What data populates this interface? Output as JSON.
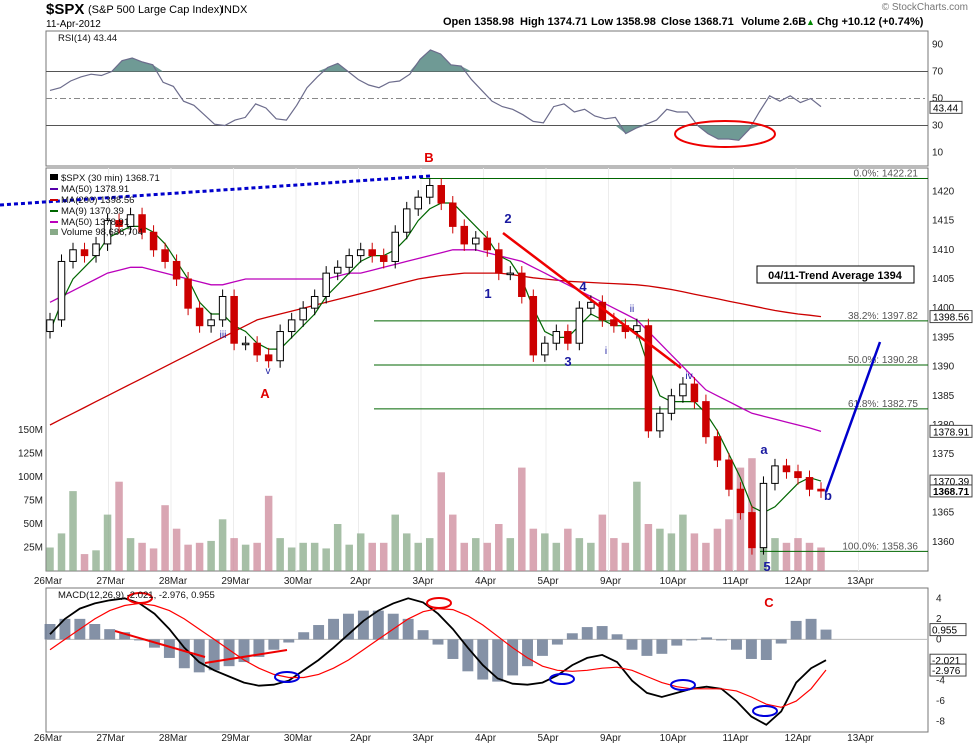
{
  "header": {
    "ticker": "$SPX",
    "name": "(S&P 500 Large Cap Index)",
    "exchange": "INDX",
    "date": "11-Apr-2012",
    "open": "Open 1358.98",
    "high": "High 1374.71",
    "low": "Low 1358.98",
    "close": "Close 1368.71",
    "volume": "Volume 2.6B",
    "change": "Chg +10.12 (+0.74%)",
    "change_arrow": "▲",
    "watermark": "© StockCharts.com"
  },
  "colors": {
    "candle_up": "#000000",
    "candle_down": "#cc0000",
    "ma50": "#5500aa",
    "ma200": "#cc0000",
    "ma9": "#006600",
    "ma50b": "#bb00bb",
    "volume_up": "#88aa88",
    "volume_down": "#cc8899",
    "rsi_fill": "#5f8f8a",
    "macd_line": "#000000",
    "macd_signal": "#ff0000",
    "histogram": "#6e7e96",
    "trendline_blue": "#0000cc",
    "fib_green": "#006600"
  },
  "chart_data": [
    {
      "panel": "RSI",
      "type": "line",
      "title": "RSI(14) 43.44",
      "ylim": [
        0,
        100
      ],
      "yticks": [
        10,
        30,
        50,
        70,
        90
      ],
      "ytick_labels": [
        "10",
        "30",
        "50",
        "70",
        "90"
      ],
      "levels": [
        30,
        70
      ],
      "current_label": "43.44",
      "current": 43.44,
      "x": [
        0,
        2,
        4,
        6,
        8,
        10,
        12,
        14,
        16,
        18,
        20,
        22,
        24,
        26,
        28,
        30,
        32,
        34,
        36,
        38,
        40,
        42,
        44,
        46,
        48,
        50,
        52,
        54,
        56,
        58,
        60,
        62,
        64,
        66,
        68,
        70,
        72,
        74,
        76,
        78,
        80,
        82,
        84,
        86,
        88,
        90,
        92,
        94,
        96,
        98,
        100,
        102,
        104,
        106,
        108,
        110,
        112,
        114,
        116,
        118,
        120,
        122,
        124,
        126,
        128,
        130,
        132,
        134,
        136,
        138,
        140,
        142,
        144,
        146,
        148,
        150
      ],
      "values": [
        56,
        58,
        63,
        66,
        68,
        67,
        70,
        78,
        80,
        77,
        75,
        62,
        59,
        48,
        45,
        38,
        31,
        30,
        34,
        36,
        46,
        43,
        35,
        34,
        45,
        58,
        66,
        73,
        76,
        70,
        64,
        60,
        58,
        62,
        63,
        68,
        79,
        86,
        83,
        75,
        74,
        64,
        56,
        48,
        44,
        42,
        38,
        33,
        32,
        44,
        46,
        40,
        42,
        37,
        35,
        36,
        24,
        28,
        31,
        34,
        42,
        40,
        40,
        30,
        24,
        20,
        20,
        19,
        27,
        40,
        52,
        48,
        52,
        47,
        50,
        44
      ]
    },
    {
      "panel": "Price",
      "type": "candlestick",
      "title": "$SPX (30 min) 1368.71",
      "interval": "30 min",
      "ylim": [
        1355,
        1424
      ],
      "yticks": [
        1360,
        1365,
        1370,
        1375,
        1380,
        1385,
        1390,
        1395,
        1400,
        1405,
        1410,
        1415,
        1420
      ],
      "ytick_labels": [
        "1360",
        "1365",
        "1370",
        "1375",
        "1380",
        "1385",
        "1390",
        "1395",
        "1400",
        "1405",
        "1410",
        "1415",
        "1420"
      ],
      "categories": [
        "26Mar",
        "27Mar",
        "28Mar",
        "29Mar",
        "30Mar",
        "2Apr",
        "3Apr",
        "4Apr",
        "5Apr",
        "9Apr",
        "10Apr",
        "11Apr",
        "12Apr",
        "13Apr"
      ],
      "legend": [
        "$SPX (30 min) 1368.71",
        "MA(50) 1378.91",
        "MA(200) 1398.56",
        "MA(9) 1370.39",
        "MA(50) 1378.91",
        "Volume 98,686,704"
      ],
      "price_badges": [
        {
          "label": "1398.56",
          "value": 1398.56
        },
        {
          "label": "1378.91",
          "value": 1378.91
        },
        {
          "label": "1370.39",
          "value": 1370.39
        },
        {
          "label": "1368.71",
          "value": 1368.71
        }
      ],
      "close": [
        1398,
        1408,
        1410,
        1409,
        1411,
        1415,
        1414,
        1416,
        1413,
        1410,
        1408,
        1405,
        1400,
        1397,
        1398,
        1402,
        1394,
        1394,
        1392,
        1391,
        1396,
        1398,
        1400,
        1402,
        1406,
        1407,
        1409,
        1410,
        1409,
        1408,
        1413,
        1417,
        1419,
        1421,
        1418,
        1414,
        1411,
        1412,
        1410,
        1406,
        1406,
        1402,
        1392,
        1394,
        1396,
        1394,
        1400,
        1401,
        1398,
        1397,
        1396,
        1397,
        1379,
        1382,
        1385,
        1387,
        1384,
        1378,
        1374,
        1369,
        1365,
        1359,
        1370,
        1373,
        1372,
        1371,
        1369,
        1368.71
      ],
      "ma": {
        "MA(9)": [
          1396,
          1401,
          1405,
          1407,
          1409,
          1412,
          1413,
          1414,
          1414,
          1413,
          1411,
          1408,
          1405,
          1401,
          1399,
          1399,
          1397,
          1396,
          1394,
          1393,
          1393,
          1395,
          1397,
          1399,
          1402,
          1404,
          1406,
          1408,
          1409,
          1409,
          1410,
          1412,
          1415,
          1417,
          1418,
          1418,
          1416,
          1414,
          1412,
          1409,
          1408,
          1405,
          1400,
          1396,
          1395,
          1395,
          1397,
          1399,
          1398,
          1397,
          1397,
          1396,
          1390,
          1385,
          1384,
          1384,
          1384,
          1382,
          1379,
          1375,
          1371,
          1366,
          1365,
          1366,
          1368,
          1370,
          1371,
          1370.39
        ],
        "MA(200)": [
          1380,
          1381,
          1382,
          1383,
          1384,
          1385,
          1386,
          1387,
          1388,
          1389,
          1390,
          1391,
          1392,
          1393,
          1394,
          1395,
          1396,
          1397,
          1398,
          1398.5,
          1399,
          1399.5,
          1400,
          1400.5,
          1401,
          1401.5,
          1402,
          1402.5,
          1403,
          1403.5,
          1404,
          1404.5,
          1405,
          1405.3,
          1405.6,
          1405.8,
          1406,
          1406,
          1406,
          1406,
          1405.8,
          1405.5,
          1405.2,
          1405,
          1404.8,
          1404.6,
          1404.5,
          1404.4,
          1404.3,
          1404.2,
          1404.1,
          1404,
          1403.8,
          1403.5,
          1403.2,
          1402.8,
          1402.4,
          1402,
          1401.6,
          1401.2,
          1400.8,
          1400.4,
          1400,
          1399.6,
          1399.3,
          1399,
          1398.8,
          1398.56
        ],
        "MA(50)": [
          1401,
          1402,
          1403,
          1404,
          1405,
          1406,
          1406.5,
          1407,
          1407,
          1406.5,
          1406,
          1405.5,
          1405,
          1404.5,
          1404,
          1404,
          1404.5,
          1405,
          1405,
          1405,
          1405,
          1405,
          1405,
          1405,
          1405,
          1405.5,
          1406,
          1406,
          1406.5,
          1407,
          1407.5,
          1408,
          1408.5,
          1409,
          1409.5,
          1410,
          1410,
          1410,
          1409.5,
          1409,
          1408.5,
          1408,
          1407,
          1406,
          1405,
          1404,
          1403,
          1402,
          1401,
          1400,
          1399,
          1398,
          1396,
          1394,
          1392,
          1390,
          1388,
          1386,
          1385,
          1384,
          1383,
          1382,
          1381.5,
          1381,
          1380.5,
          1380,
          1379.5,
          1378.91
        ]
      },
      "fibonacci": [
        {
          "label": "0.0%: 1422.21",
          "value": 1422.21
        },
        {
          "label": "38.2%: 1397.82",
          "value": 1397.82
        },
        {
          "label": "50.0%: 1390.28",
          "value": 1390.28
        },
        {
          "label": "61.8%: 1382.75",
          "value": 1382.75
        },
        {
          "label": "100.0%: 1358.36",
          "value": 1358.36
        }
      ],
      "annotations": {
        "trend_box": "04/11-Trend Average 1394",
        "waves_red": [
          "A",
          "B",
          "C"
        ],
        "waves_blue": [
          "1",
          "2",
          "3",
          "4",
          "5",
          "a",
          "b"
        ],
        "waves_small": [
          "i",
          "ii",
          "iii",
          "iv",
          "v"
        ]
      },
      "volume": {
        "ylim": [
          0,
          150
        ],
        "yticks": [
          25,
          50,
          75,
          100,
          125,
          150
        ],
        "ytick_labels": [
          "25M",
          "50M",
          "75M",
          "100M",
          "125M",
          "150M"
        ],
        "values": [
          25,
          40,
          85,
          18,
          22,
          60,
          95,
          35,
          30,
          24,
          70,
          45,
          28,
          30,
          32,
          55,
          35,
          28,
          30,
          80,
          35,
          25,
          30,
          30,
          24,
          50,
          28,
          40,
          30,
          30,
          60,
          40,
          30,
          35,
          105,
          60,
          30,
          35,
          30,
          50,
          35,
          110,
          45,
          40,
          30,
          45,
          35,
          30,
          60,
          35,
          30,
          95,
          50,
          45,
          40,
          60,
          40,
          30,
          45,
          55,
          110,
          120,
          30,
          35,
          30,
          35,
          30,
          25
        ]
      }
    },
    {
      "panel": "MACD",
      "type": "line",
      "title": "MACD(12,26,9) -2.021, -2.976, 0.955",
      "ylim": [
        -9,
        5
      ],
      "yticks": [
        4,
        2,
        0,
        -2,
        -4,
        -6,
        -8
      ],
      "ytick_labels": [
        "4",
        "2",
        "0",
        "-2",
        "-4",
        "-6",
        "-8"
      ],
      "badges": [
        {
          "label": "0.955",
          "value": 0.955
        },
        {
          "label": "-2.021",
          "value": -2.021
        },
        {
          "label": "-2.976",
          "value": -2.976
        }
      ],
      "series": [
        {
          "name": "MACD",
          "values": [
            0.5,
            2.0,
            3.0,
            3.5,
            3.8,
            4.0,
            3.5,
            2.5,
            1.0,
            -0.8,
            -2.2,
            -3.0,
            -3.6,
            -4.2,
            -4.5,
            -4.4,
            -4.0,
            -3.0,
            -2.0,
            -0.8,
            0.5,
            1.8,
            2.8,
            3.5,
            4.0,
            3.6,
            2.5,
            1.0,
            -0.8,
            -2.5,
            -3.8,
            -4.3,
            -4.4,
            -4.2,
            -3.5,
            -2.5,
            -1.8,
            -1.5,
            -2.2,
            -4.0,
            -5.2,
            -5.6,
            -5.2,
            -4.8,
            -4.6,
            -4.8,
            -6.0,
            -7.5,
            -8.3,
            -7.0,
            -4.2,
            -2.8,
            -2.021
          ]
        },
        {
          "name": "Signal",
          "values": [
            -1.0,
            0.0,
            1.0,
            2.0,
            2.8,
            3.3,
            3.5,
            3.3,
            2.8,
            2.0,
            1.0,
            0.0,
            -1.0,
            -2.0,
            -2.8,
            -3.4,
            -3.7,
            -3.7,
            -3.4,
            -2.8,
            -2.0,
            -1.0,
            0.0,
            1.0,
            2.0,
            2.7,
            3.0,
            2.9,
            2.3,
            1.4,
            0.3,
            -0.8,
            -1.8,
            -2.6,
            -3.0,
            -3.1,
            -3.0,
            -2.8,
            -2.7,
            -3.0,
            -3.6,
            -4.2,
            -4.6,
            -4.8,
            -4.8,
            -4.8,
            -5.0,
            -5.6,
            -6.3,
            -6.6,
            -6.0,
            -4.8,
            -2.976
          ]
        }
      ],
      "histogram": [
        1.5,
        2.0,
        2.0,
        1.5,
        1.0,
        0.7,
        0.0,
        -0.8,
        -1.8,
        -2.8,
        -3.2,
        -3.0,
        -2.6,
        -2.2,
        -1.7,
        -1.0,
        -0.3,
        0.7,
        1.4,
        2.0,
        2.5,
        2.8,
        2.8,
        2.5,
        2.0,
        0.9,
        -0.5,
        -1.9,
        -3.1,
        -3.9,
        -4.1,
        -3.5,
        -2.6,
        -1.6,
        -0.5,
        0.6,
        1.2,
        1.3,
        0.5,
        -1.0,
        -1.6,
        -1.4,
        -0.6,
        0.0,
        0.2,
        0.0,
        -1.0,
        -1.9,
        -2.0,
        -0.4,
        1.8,
        2.0,
        0.955
      ]
    }
  ]
}
